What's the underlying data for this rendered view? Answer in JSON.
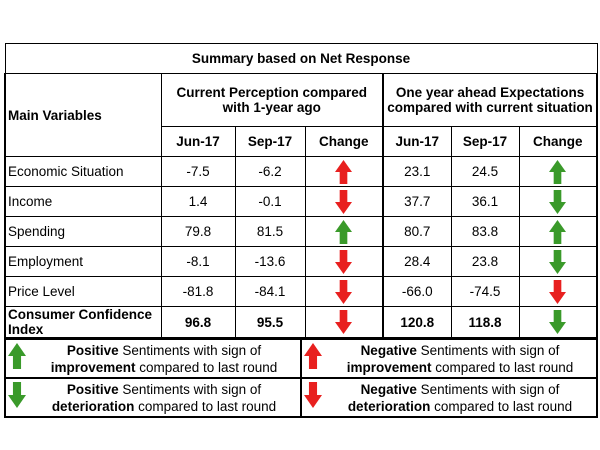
{
  "title": "Summary based on Net Response",
  "headers": {
    "main_variables": "Main Variables",
    "current": "Current Perception compared with 1-year ago",
    "ahead": "One year ahead Expectations compared with current situation",
    "jun": "Jun-17",
    "sep": "Sep-17",
    "change": "Change"
  },
  "rows": [
    {
      "label": "Economic Situation",
      "cur_jun": "-7.5",
      "cur_sep": "-6.2",
      "cur_change": "up-red",
      "ex_jun": "23.1",
      "ex_sep": "24.5",
      "ex_change": "up-green"
    },
    {
      "label": "Income",
      "cur_jun": "1.4",
      "cur_sep": "-0.1",
      "cur_change": "down-red",
      "ex_jun": "37.7",
      "ex_sep": "36.1",
      "ex_change": "down-green"
    },
    {
      "label": "Spending",
      "cur_jun": "79.8",
      "cur_sep": "81.5",
      "cur_change": "up-green",
      "ex_jun": "80.7",
      "ex_sep": "83.8",
      "ex_change": "up-green"
    },
    {
      "label": "Employment",
      "cur_jun": "-8.1",
      "cur_sep": "-13.6",
      "cur_change": "down-red",
      "ex_jun": "28.4",
      "ex_sep": "23.8",
      "ex_change": "down-green"
    },
    {
      "label": "Price Level",
      "cur_jun": "-81.8",
      "cur_sep": "-84.1",
      "cur_change": "down-red",
      "ex_jun": "-66.0",
      "ex_sep": "-74.5",
      "ex_change": "down-red"
    }
  ],
  "cci": {
    "label": "Consumer Confidence Index",
    "cur_jun": "96.8",
    "cur_sep": "95.5",
    "cur_change": "down-red",
    "ex_jun": "120.8",
    "ex_sep": "118.8",
    "ex_change": "down-green"
  },
  "legend": {
    "pos_imp": {
      "bold1": "Positive",
      "t1": " Sentiments with sign of",
      "bold2": "improvement",
      "t2": " compared to last round"
    },
    "neg_imp": {
      "bold1": "Negative",
      "t1": " Sentiments with sign of",
      "bold2": "improvement",
      "t2": " compared to last round"
    },
    "pos_det": {
      "bold1": "Positive",
      "t1": " Sentiments with sign of",
      "bold2": "deterioration",
      "t2": " compared to last round"
    },
    "neg_det": {
      "bold1": "Negative",
      "t1": " Sentiments with sign of",
      "bold2": "deterioration",
      "t2": " compared to last round"
    }
  },
  "colors": {
    "green": "#3a9a2a",
    "red": "#e8201f"
  }
}
